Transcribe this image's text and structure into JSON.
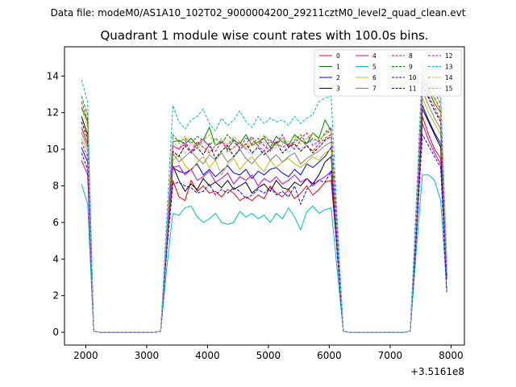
{
  "header": {
    "suptitle": "Data file: modeM0/AS1A10_102T02_9000004200_29211cztM0_level2_quad_clean.evt"
  },
  "chart_data": {
    "type": "line",
    "title": "Quadrant 1 module wise count rates with 100.0s bins.",
    "xlabel": "",
    "ylabel": "",
    "x_offset_label": "+3.5161e8",
    "xlim": [
      1650,
      8220
    ],
    "ylim": [
      -0.7,
      15.6
    ],
    "xticks": [
      2000,
      3000,
      4000,
      5000,
      6000,
      7000,
      8000
    ],
    "yticks": [
      0,
      2,
      4,
      6,
      8,
      10,
      12,
      14
    ],
    "grid": false,
    "legend_placement": "top-right",
    "x": [
      1930,
      2030,
      2130,
      2230,
      2330,
      2430,
      2530,
      2630,
      2730,
      2830,
      2930,
      3030,
      3130,
      3230,
      3330,
      3430,
      3530,
      3630,
      3730,
      3830,
      3930,
      4030,
      4130,
      4230,
      4330,
      4430,
      4530,
      4630,
      4730,
      4830,
      4930,
      5030,
      5130,
      5230,
      5330,
      5430,
      5530,
      5630,
      5730,
      5830,
      5930,
      6030,
      6130,
      6230,
      6330,
      6430,
      6530,
      6630,
      6730,
      6830,
      6930,
      7030,
      7130,
      7230,
      7330,
      7430,
      7530,
      7630,
      7730,
      7830,
      7930
    ],
    "series": [
      {
        "name": "0",
        "color": "#ff0000",
        "dash": "solid",
        "values": [
          11.2,
          10.3,
          0.05,
          0,
          0,
          0,
          0,
          0,
          0,
          0,
          0,
          0,
          0,
          0.05,
          4.8,
          8.3,
          7.4,
          7.2,
          8.3,
          7.7,
          8.0,
          7.6,
          7.7,
          7.4,
          7.8,
          7.6,
          7.2,
          7.4,
          7.2,
          7.5,
          7.3,
          8.0,
          7.6,
          7.4,
          7.8,
          7.3,
          7.6,
          8.0,
          7.5,
          7.8,
          8.2,
          8.3,
          4.5,
          0.05,
          0,
          0,
          0,
          0,
          0,
          0,
          0,
          0,
          0,
          0,
          0.05,
          5.5,
          11.8,
          10.8,
          10.0,
          9.5,
          3.2
        ]
      },
      {
        "name": "1",
        "color": "#008000",
        "dash": "solid",
        "values": [
          12.3,
          11.5,
          0.05,
          0,
          0,
          0,
          0,
          0,
          0,
          0,
          0,
          0,
          0,
          0.05,
          5.3,
          10.4,
          10.5,
          10.3,
          10.6,
          10.2,
          10.5,
          11.2,
          10.2,
          10.4,
          10.0,
          10.5,
          10.3,
          10.8,
          10.2,
          10.4,
          10.6,
          10.1,
          10.7,
          10.4,
          10.2,
          10.8,
          10.5,
          10.3,
          10.9,
          10.6,
          11.6,
          11.0,
          5.7,
          0.05,
          0,
          0,
          0,
          0,
          0,
          0,
          0,
          0,
          0,
          0,
          0.05,
          6.5,
          13.8,
          13.2,
          12.5,
          12.0,
          3.7
        ]
      },
      {
        "name": "2",
        "color": "#0000ff",
        "dash": "solid",
        "values": [
          10.1,
          9.3,
          0.05,
          0,
          0,
          0,
          0,
          0,
          0,
          0,
          0,
          0,
          0,
          0.05,
          4.6,
          9.0,
          8.8,
          8.7,
          8.9,
          9.2,
          8.6,
          8.9,
          8.5,
          8.8,
          9.1,
          8.7,
          8.6,
          8.9,
          8.4,
          8.8,
          8.6,
          8.9,
          9.0,
          8.7,
          8.5,
          8.9,
          8.6,
          9.2,
          9.0,
          9.3,
          9.6,
          10.1,
          5.0,
          0.05,
          0,
          0,
          0,
          0,
          0,
          0,
          0,
          0,
          0,
          0,
          0.05,
          5.8,
          12.4,
          11.6,
          10.9,
          10.3,
          3.0
        ]
      },
      {
        "name": "3",
        "color": "#000000",
        "dash": "solid",
        "values": [
          11.8,
          10.8,
          0.05,
          0,
          0,
          0,
          0,
          0,
          0,
          0,
          0,
          0,
          0,
          0.05,
          4.9,
          9.1,
          8.3,
          7.7,
          8.1,
          7.8,
          8.4,
          8.0,
          8.2,
          7.9,
          8.3,
          7.8,
          8.0,
          8.2,
          7.6,
          7.9,
          8.1,
          7.7,
          8.3,
          7.9,
          7.8,
          8.2,
          8.0,
          8.4,
          8.1,
          8.6,
          9.3,
          9.6,
          4.9,
          0.05,
          0,
          0,
          0,
          0,
          0,
          0,
          0,
          0,
          0,
          0,
          0.05,
          5.6,
          12.2,
          11.5,
          10.8,
          10.1,
          3.1
        ]
      },
      {
        "name": "4",
        "color": "#cc00cc",
        "dash": "solid",
        "values": [
          9.4,
          8.6,
          0.05,
          0,
          0,
          0,
          0,
          0,
          0,
          0,
          0,
          0,
          0,
          0.05,
          4.7,
          9.0,
          9.1,
          8.6,
          8.9,
          8.3,
          8.5,
          8.8,
          8.2,
          8.4,
          8.7,
          8.1,
          8.5,
          8.3,
          8.6,
          8.0,
          8.4,
          8.2,
          8.5,
          8.1,
          8.3,
          8.6,
          8.2,
          8.4,
          8.0,
          8.3,
          8.5,
          8.8,
          4.6,
          0.05,
          0,
          0,
          0,
          0,
          0,
          0,
          0,
          0,
          0,
          0,
          0.05,
          5.4,
          11.4,
          10.5,
          9.8,
          9.2,
          2.9
        ]
      },
      {
        "name": "5",
        "color": "#00bfbf",
        "dash": "solid",
        "values": [
          8.1,
          7.0,
          0.05,
          0,
          0,
          0,
          0,
          0,
          0,
          0,
          0,
          0,
          0,
          0.05,
          3.5,
          6.5,
          6.4,
          6.8,
          6.9,
          6.3,
          6.0,
          6.2,
          6.5,
          6.0,
          5.9,
          6.0,
          6.6,
          6.3,
          6.5,
          6.2,
          6.4,
          6.0,
          6.5,
          6.2,
          6.8,
          6.3,
          5.6,
          6.6,
          6.9,
          6.5,
          6.7,
          6.8,
          3.4,
          0.05,
          0,
          0,
          0,
          0,
          0,
          0,
          0,
          0,
          0,
          0,
          0.05,
          4.5,
          8.6,
          8.6,
          8.3,
          7.2,
          2.3
        ]
      },
      {
        "name": "6",
        "color": "#bfbf00",
        "dash": "solid",
        "values": [
          10.6,
          9.9,
          0.05,
          0,
          0,
          0,
          0,
          0,
          0,
          0,
          0,
          0,
          0,
          0.05,
          5.0,
          9.4,
          9.7,
          9.1,
          8.8,
          9.3,
          9.6,
          9.0,
          9.4,
          8.6,
          9.2,
          9.5,
          8.9,
          9.3,
          9.6,
          9.1,
          8.8,
          9.4,
          9.0,
          9.3,
          9.5,
          9.2,
          9.0,
          9.3,
          9.6,
          9.4,
          9.8,
          10.0,
          5.1,
          0.05,
          0,
          0,
          0,
          0,
          0,
          0,
          0,
          0,
          0,
          0,
          0.05,
          6.0,
          12.8,
          12.0,
          11.4,
          10.8,
          3.3
        ]
      },
      {
        "name": "7",
        "color": "#7f7f7f",
        "dash": "solid",
        "values": [
          10.9,
          10.1,
          0.05,
          0,
          0,
          0,
          0,
          0,
          0,
          0,
          0,
          0,
          0,
          0.05,
          5.1,
          9.8,
          9.3,
          9.6,
          9.9,
          9.5,
          9.2,
          9.7,
          9.4,
          9.8,
          9.3,
          9.6,
          10.0,
          9.5,
          9.2,
          9.6,
          9.9,
          9.4,
          9.7,
          9.3,
          9.6,
          9.8,
          9.2,
          9.5,
          9.7,
          9.9,
          10.2,
          10.4,
          5.3,
          0.05,
          0,
          0,
          0,
          0,
          0,
          0,
          0,
          0,
          0,
          0,
          0.05,
          6.1,
          13.2,
          12.4,
          11.7,
          11.1,
          3.4
        ]
      },
      {
        "name": "8",
        "color": "#ff0000",
        "dash": "dashed",
        "values": [
          12.6,
          11.6,
          0.05,
          0,
          0,
          0,
          0,
          0,
          0,
          0,
          0,
          0,
          0,
          0.05,
          5.2,
          10.2,
          10.0,
          10.3,
          9.9,
          10.4,
          10.1,
          9.8,
          10.2,
          10.5,
          9.9,
          10.1,
          10.4,
          10.0,
          10.3,
          10.6,
          10.2,
          9.9,
          10.4,
          10.1,
          10.3,
          10.0,
          10.5,
          10.2,
          9.9,
          10.3,
          10.6,
          10.8,
          5.4,
          0.05,
          0,
          0,
          0,
          0,
          0,
          0,
          0,
          0,
          0,
          0,
          0.05,
          6.4,
          14.1,
          13.4,
          12.8,
          12.2,
          3.6
        ]
      },
      {
        "name": "9",
        "color": "#008000",
        "dash": "dashed",
        "values": [
          12.9,
          11.9,
          0.05,
          0,
          0,
          0,
          0,
          0,
          0,
          0,
          0,
          0,
          0,
          0.05,
          5.5,
          10.8,
          10.4,
          10.6,
          10.3,
          10.7,
          10.5,
          10.2,
          10.6,
          10.3,
          10.8,
          10.4,
          10.1,
          10.6,
          10.5,
          10.2,
          10.7,
          10.4,
          10.3,
          10.6,
          10.1,
          10.5,
          10.8,
          10.3,
          10.6,
          10.4,
          10.9,
          11.2,
          5.6,
          0.05,
          0,
          0,
          0,
          0,
          0,
          0,
          0,
          0,
          0,
          0,
          0.05,
          6.7,
          14.5,
          13.8,
          13.1,
          12.5,
          3.8
        ]
      },
      {
        "name": "10",
        "color": "#0000ff",
        "dash": "dashed",
        "values": [
          9.8,
          8.9,
          0.05,
          0,
          0,
          0,
          0,
          0,
          0,
          0,
          0,
          0,
          0,
          0.05,
          4.4,
          8.1,
          8.2,
          8.0,
          7.9,
          7.6,
          7.7,
          8.1,
          7.5,
          7.8,
          7.6,
          7.9,
          7.7,
          7.3,
          7.5,
          7.8,
          7.6,
          7.9,
          7.5,
          7.7,
          7.4,
          8.0,
          7.0,
          7.8,
          8.1,
          8.3,
          8.2,
          8.8,
          4.3,
          0.05,
          0,
          0,
          0,
          0,
          0,
          0,
          0,
          0,
          0,
          0,
          0.05,
          5.2,
          10.8,
          10.2,
          9.6,
          9.0,
          2.2
        ]
      },
      {
        "name": "11",
        "color": "#000000",
        "dash": "dashed",
        "values": [
          11.5,
          10.6,
          0.05,
          0,
          0,
          0,
          0,
          0,
          0,
          0,
          0,
          0,
          0,
          0.05,
          5.0,
          9.9,
          9.6,
          10.2,
          9.8,
          10.1,
          9.7,
          10.3,
          9.5,
          9.9,
          10.2,
          9.6,
          10.0,
          10.3,
          9.8,
          10.1,
          9.7,
          10.0,
          10.4,
          9.8,
          10.1,
          10.3,
          9.9,
          10.2,
          9.8,
          10.1,
          10.5,
          10.7,
          5.2,
          0.05,
          0,
          0,
          0,
          0,
          0,
          0,
          0,
          0,
          0,
          0,
          0.05,
          6.2,
          13.5,
          12.8,
          12.1,
          11.5,
          3.5
        ]
      },
      {
        "name": "12",
        "color": "#cc00cc",
        "dash": "dashed",
        "values": [
          10.4,
          9.6,
          0.05,
          0,
          0,
          0,
          0,
          0,
          0,
          0,
          0,
          0,
          0,
          0.05,
          5.3,
          10.2,
          10.0,
          10.5,
          9.8,
          10.3,
          10.6,
          10.1,
          9.9,
          10.4,
          10.2,
          10.6,
          10.0,
          10.3,
          10.7,
          10.2,
          9.9,
          10.5,
          10.3,
          10.8,
          10.1,
          10.4,
          10.6,
          10.9,
          10.2,
          10.5,
          10.8,
          11.1,
          5.5,
          0.05,
          0,
          0,
          0,
          0,
          0,
          0,
          0,
          0,
          0,
          0,
          0.05,
          6.3,
          13.6,
          12.9,
          12.3,
          11.6,
          3.6
        ]
      },
      {
        "name": "13",
        "color": "#00bfbf",
        "dash": "dashed",
        "values": [
          13.8,
          12.6,
          0.05,
          0,
          0,
          0,
          0,
          0,
          0,
          0,
          0,
          0,
          0,
          0.05,
          6.2,
          12.4,
          11.5,
          11.1,
          11.6,
          11.8,
          12.2,
          11.4,
          11.0,
          11.7,
          11.3,
          11.6,
          12.1,
          11.5,
          11.2,
          11.8,
          11.4,
          11.7,
          11.5,
          11.6,
          11.3,
          11.8,
          11.4,
          11.7,
          11.9,
          12.6,
          12.8,
          12.9,
          6.3,
          0.05,
          0,
          0,
          0,
          0,
          0,
          0,
          0,
          0,
          0,
          0,
          0.05,
          7.2,
          14.8,
          14.2,
          13.6,
          13.0,
          4.0
        ]
      },
      {
        "name": "14",
        "color": "#bfbf00",
        "dash": "dashed",
        "values": [
          12.2,
          11.2,
          0.05,
          0,
          0,
          0,
          0,
          0,
          0,
          0,
          0,
          0,
          0,
          0.05,
          5.4,
          10.6,
          10.3,
          10.7,
          10.4,
          10.1,
          10.5,
          10.8,
          10.2,
          10.6,
          10.3,
          10.7,
          10.4,
          10.1,
          10.6,
          10.3,
          10.8,
          10.5,
          10.2,
          10.6,
          10.4,
          10.7,
          10.3,
          10.6,
          10.9,
          10.5,
          10.8,
          11.0,
          5.5,
          0.05,
          0,
          0,
          0,
          0,
          0,
          0,
          0,
          0,
          0,
          0,
          0.05,
          6.5,
          14.0,
          13.3,
          12.7,
          12.1,
          3.6
        ]
      },
      {
        "name": "15",
        "color": "#aaaaff",
        "dash": "dashed",
        "values": [
          11.0,
          10.2,
          0.05,
          0,
          0,
          0,
          0,
          0,
          0,
          0,
          0,
          0,
          0,
          0.05,
          5.2,
          10.4,
          10.1,
          9.8,
          10.3,
          10.0,
          10.4,
          9.9,
          10.2,
          10.5,
          9.8,
          10.1,
          10.3,
          10.0,
          9.7,
          10.2,
          10.4,
          9.9,
          10.1,
          10.3,
          9.8,
          10.2,
          10.0,
          10.3,
          10.5,
          10.1,
          10.4,
          10.7,
          5.3,
          0.05,
          0,
          0,
          0,
          0,
          0,
          0,
          0,
          0,
          0,
          0,
          0.05,
          6.3,
          14.3,
          13.9,
          13.3,
          12.8,
          3.7
        ]
      }
    ]
  }
}
